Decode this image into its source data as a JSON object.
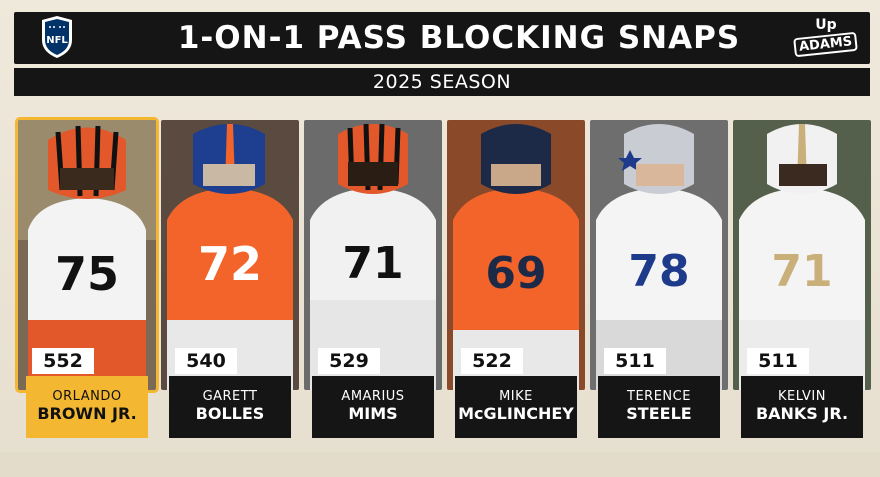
{
  "header": {
    "logo": "NFL",
    "title": "1-ON-1 PASS BLOCKING SNAPS",
    "brand_top": "Up",
    "brand_bottom": "ADAMS"
  },
  "season": "2025 SEASON",
  "colors": {
    "background": "#e9e2d3",
    "bar": "#151515",
    "highlight": "#f4b731",
    "bengals_orange": "#e2582a",
    "broncos_orange": "#f2642a",
    "bears_navy": "#1d2a47",
    "cowboys_blue": "#1e3a8a",
    "saints_gold": "#c9b07a"
  },
  "players": [
    {
      "count": "552",
      "first": "ORLANDO",
      "last": "BROWN JR.",
      "number": "75",
      "team_icon": "bengals-helmet",
      "highlight": true
    },
    {
      "count": "540",
      "first": "GARETT",
      "last": "BOLLES",
      "number": "72",
      "team_icon": "broncos-helmet",
      "highlight": false
    },
    {
      "count": "529",
      "first": "AMARIUS",
      "last": "MIMS",
      "number": "71",
      "team_icon": "bengals-helmet",
      "highlight": false
    },
    {
      "count": "522",
      "first": "MIKE",
      "last": "McGLINCHEY",
      "number": "69",
      "team_icon": "broncos-helmet",
      "highlight": false
    },
    {
      "count": "511",
      "first": "TERENCE",
      "last": "STEELE",
      "number": "78",
      "team_icon": "cowboys-helmet",
      "highlight": false
    },
    {
      "count": "511",
      "first": "KELVIN",
      "last": "BANKS JR.",
      "number": "71",
      "team_icon": "saints-helmet",
      "highlight": false
    }
  ]
}
